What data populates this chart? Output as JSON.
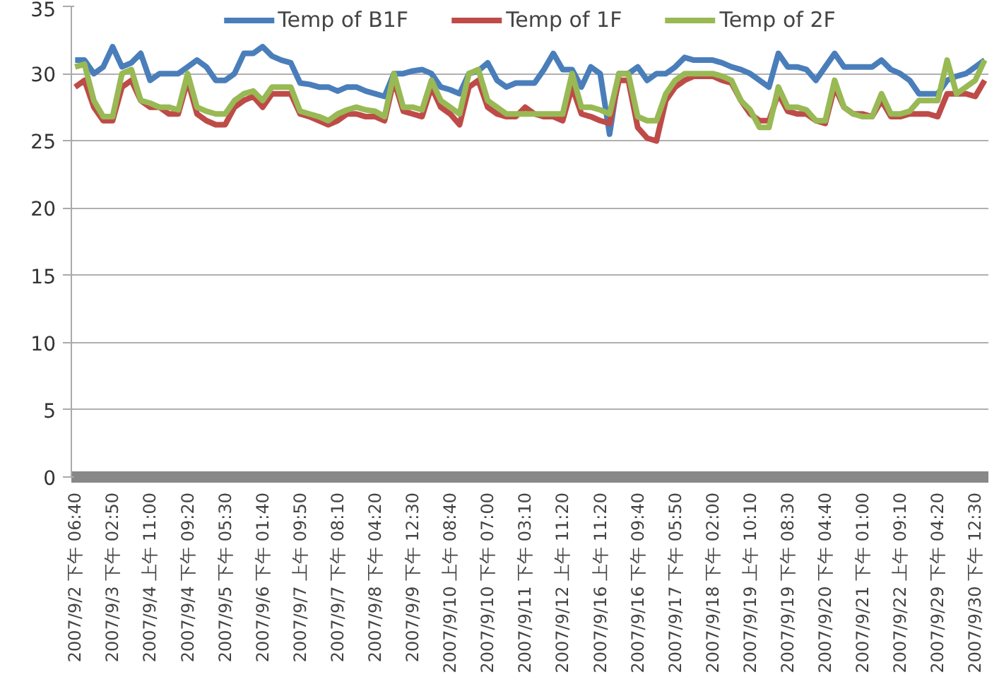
{
  "chart_data": {
    "type": "line",
    "legend": "top",
    "grid": "y",
    "marker": "none",
    "line_style": "solid",
    "ylim": [
      0,
      35
    ],
    "yticks": [
      0,
      5,
      10,
      15,
      20,
      25,
      30,
      35
    ],
    "categories": [
      "2007/9/2 下午 06:40",
      null,
      null,
      null,
      "2007/9/3 下午 02:50",
      null,
      null,
      null,
      "2007/9/4 上午 11:00",
      null,
      null,
      null,
      "2007/9/4 下午 09:20",
      null,
      null,
      null,
      "2007/9/5 下午 05:30",
      null,
      null,
      null,
      "2007/9/6 下午 01:40",
      null,
      null,
      null,
      "2007/9/7 上午 09:50",
      null,
      null,
      null,
      "2007/9/7 下午 08:10",
      null,
      null,
      null,
      "2007/9/8 下午 04:20",
      null,
      null,
      null,
      "2007/9/9 下午 12:30",
      null,
      null,
      null,
      "2007/9/10 上午 08:40",
      null,
      null,
      null,
      "2007/9/10 下午 07:00",
      null,
      null,
      null,
      "2007/9/11 下午 03:10",
      null,
      null,
      null,
      "2007/9/12 上午 11:20",
      null,
      null,
      null,
      "2007/9/16 上午 11:20",
      null,
      null,
      null,
      "2007/9/16 下午 09:40",
      null,
      null,
      null,
      "2007/9/17 下午 05:50",
      null,
      null,
      null,
      "2007/9/18 下午 02:00",
      null,
      null,
      null,
      "2007/9/19 上午 10:10",
      null,
      null,
      null,
      "2007/9/19 下午 08:30",
      null,
      null,
      null,
      "2007/9/20 下午 04:40",
      null,
      null,
      null,
      "2007/9/21 下午 01:00",
      null,
      null,
      null,
      "2007/9/22 上午 09:10",
      null,
      null,
      null,
      "2007/9/29 下午 04:20",
      null,
      null,
      null,
      "2007/9/30 下午 12:30",
      null
    ],
    "series": [
      {
        "name": "Temp of B1F",
        "color": "#4a7ebb",
        "values": [
          31,
          31,
          30,
          30.5,
          32,
          30.5,
          30.8,
          31.5,
          29.5,
          30,
          30,
          30,
          30.5,
          31,
          30.5,
          29.5,
          29.5,
          30,
          31.5,
          31.5,
          32,
          31.3,
          31,
          30.8,
          29.3,
          29.2,
          29,
          29,
          28.7,
          29,
          29,
          28.7,
          28.5,
          28.3,
          30,
          30,
          30.2,
          30.3,
          30,
          29,
          28.8,
          28.5,
          30,
          30.2,
          30.8,
          29.5,
          29,
          29.3,
          29.3,
          29.3,
          30.3,
          31.5,
          30.3,
          30.3,
          29,
          30.5,
          30,
          25.5,
          30,
          30,
          30.5,
          29.5,
          30,
          30,
          30.5,
          31.2,
          31,
          31,
          31,
          30.8,
          30.5,
          30.3,
          30,
          29.5,
          29,
          31.5,
          30.5,
          30.5,
          30.3,
          29.5,
          30.5,
          31.5,
          30.5,
          30.5,
          30.5,
          30.5,
          31,
          30.3,
          30,
          29.5,
          28.5,
          28.5,
          28.5,
          29.5,
          29.8,
          30,
          30.5,
          31
        ]
      },
      {
        "name": "Temp of 1F",
        "color": "#be4b48",
        "values": [
          29,
          29.5,
          27.5,
          26.5,
          26.5,
          29,
          29.5,
          28,
          27.5,
          27.5,
          27,
          27,
          29.5,
          27,
          26.5,
          26.2,
          26.2,
          27.5,
          28,
          28.3,
          27.5,
          28.5,
          28.5,
          28.5,
          27,
          26.8,
          26.5,
          26.2,
          26.5,
          27,
          27,
          26.8,
          26.8,
          26.5,
          29.5,
          27.2,
          27,
          26.8,
          29,
          27.5,
          27,
          26.2,
          29,
          29.5,
          27.5,
          27,
          26.8,
          26.8,
          27.5,
          27,
          26.8,
          26.8,
          26.5,
          29,
          27,
          26.8,
          26.5,
          26.3,
          29.5,
          29.5,
          26,
          25.2,
          25,
          28,
          29,
          29.5,
          29.8,
          29.8,
          29.8,
          29.5,
          29.3,
          28,
          27,
          26.5,
          26.5,
          28.5,
          27.2,
          27,
          27,
          26.5,
          26.3,
          29,
          27.5,
          27,
          27,
          26.8,
          28,
          26.8,
          26.8,
          27,
          27,
          27,
          26.8,
          28.5,
          28.5,
          28.5,
          28.3,
          29.5
        ]
      },
      {
        "name": "Temp of 2F",
        "color": "#98b954",
        "values": [
          30.5,
          30.7,
          28,
          26.8,
          26.8,
          30,
          30.3,
          28,
          27.8,
          27.5,
          27.5,
          27.3,
          30,
          27.5,
          27.2,
          27,
          27,
          28,
          28.5,
          28.7,
          28,
          29,
          29,
          29,
          27.2,
          27,
          26.8,
          26.5,
          27,
          27.3,
          27.5,
          27.3,
          27.2,
          26.8,
          30,
          27.5,
          27.5,
          27.3,
          29.5,
          28,
          27.5,
          27,
          30,
          30.3,
          28,
          27.5,
          27,
          27,
          27,
          27,
          27,
          27,
          27,
          30,
          27.5,
          27.5,
          27.3,
          27,
          30,
          30,
          26.8,
          26.5,
          26.5,
          28.5,
          29.5,
          30,
          30,
          30,
          30,
          29.8,
          29.5,
          28,
          27.3,
          26,
          26,
          29,
          27.5,
          27.5,
          27.3,
          26.5,
          26.5,
          29.5,
          27.5,
          27,
          26.8,
          26.8,
          28.5,
          27,
          27,
          27.2,
          28,
          28,
          28,
          31,
          28.5,
          29,
          29.5,
          31
        ]
      }
    ]
  }
}
